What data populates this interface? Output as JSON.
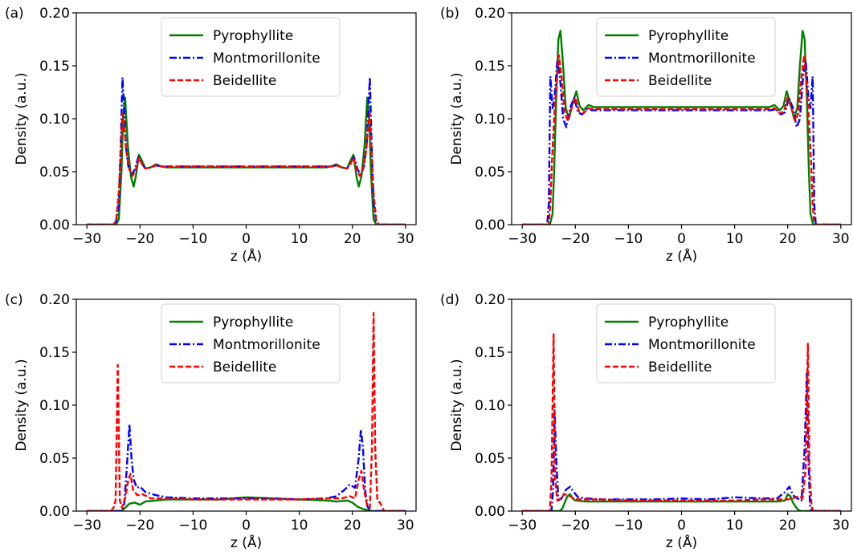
{
  "figure": {
    "ylabel": "Density (a.u.)",
    "xlabel": "z (Å)"
  },
  "chart_data": [
    {
      "type": "line",
      "panel_label": "(a)",
      "xlabel": "z (Å)",
      "ylabel": "Density (a.u.)",
      "xlim": [
        -32,
        32
      ],
      "ylim": [
        0,
        0.2
      ],
      "xticks": [
        -30,
        -20,
        -10,
        0,
        10,
        20,
        30
      ],
      "yticks": [
        0.0,
        0.05,
        0.1,
        0.15,
        0.2
      ],
      "legend_position": "top-center",
      "series": [
        {
          "name": "Pyrophyllite",
          "color": "#008000",
          "dash": "solid",
          "x": [
            -30,
            -24.5,
            -24,
            -23.5,
            -23.2,
            -22.8,
            -22.3,
            -21.7,
            -21.2,
            -20.8,
            -20.2,
            -19.6,
            -19.0,
            -18.0,
            -17.0,
            -16.0,
            -15.0,
            15.0,
            16.0,
            17.0,
            18.0,
            19.0,
            19.6,
            20.2,
            20.8,
            21.2,
            21.7,
            22.3,
            22.8,
            23.2,
            23.5,
            24.0,
            24.5,
            30
          ],
          "y": [
            0,
            0,
            0.005,
            0.05,
            0.1,
            0.12,
            0.075,
            0.045,
            0.036,
            0.045,
            0.066,
            0.06,
            0.053,
            0.054,
            0.057,
            0.055,
            0.054,
            0.054,
            0.055,
            0.057,
            0.054,
            0.053,
            0.06,
            0.066,
            0.045,
            0.036,
            0.045,
            0.075,
            0.12,
            0.1,
            0.05,
            0.005,
            0,
            0
          ]
        },
        {
          "name": "Montmorillonite",
          "color": "#0000ff",
          "dash": "dashdot",
          "x": [
            -30,
            -25,
            -24.5,
            -24,
            -23.6,
            -23.3,
            -23.0,
            -22.7,
            -22.2,
            -21.6,
            -21.0,
            -20.3,
            -19.7,
            -19.0,
            -18.0,
            -17.0,
            -16.0,
            16.0,
            17.0,
            18.0,
            19.0,
            19.7,
            20.3,
            21.0,
            21.6,
            22.2,
            22.7,
            23.0,
            23.3,
            23.6,
            24.0,
            24.5,
            25,
            30
          ],
          "y": [
            0,
            0,
            0.003,
            0.02,
            0.08,
            0.139,
            0.11,
            0.075,
            0.055,
            0.047,
            0.052,
            0.064,
            0.058,
            0.053,
            0.054,
            0.056,
            0.055,
            0.055,
            0.056,
            0.054,
            0.053,
            0.058,
            0.064,
            0.052,
            0.047,
            0.055,
            0.075,
            0.11,
            0.139,
            0.08,
            0.02,
            0.003,
            0,
            0
          ]
        },
        {
          "name": "Beidellite",
          "color": "#ff0000",
          "dash": "dashed",
          "x": [
            -30,
            -25,
            -24.5,
            -24,
            -23.6,
            -23.3,
            -23.0,
            -22.6,
            -22.0,
            -21.4,
            -20.8,
            -20.2,
            -19.6,
            -19.0,
            -18.0,
            -17.0,
            -16.0,
            16.0,
            17.0,
            18.0,
            19.0,
            19.6,
            20.2,
            20.8,
            21.4,
            22.0,
            22.6,
            23.0,
            23.3,
            23.6,
            24.0,
            24.5,
            25,
            30
          ],
          "y": [
            0,
            0,
            0.004,
            0.03,
            0.07,
            0.105,
            0.095,
            0.07,
            0.052,
            0.046,
            0.052,
            0.063,
            0.057,
            0.053,
            0.054,
            0.056,
            0.055,
            0.055,
            0.056,
            0.054,
            0.053,
            0.057,
            0.063,
            0.052,
            0.046,
            0.052,
            0.07,
            0.095,
            0.105,
            0.07,
            0.03,
            0.004,
            0,
            0
          ]
        }
      ]
    },
    {
      "type": "line",
      "panel_label": "(b)",
      "xlabel": "z (Å)",
      "ylabel": "Density (a.u.)",
      "xlim": [
        -32,
        32
      ],
      "ylim": [
        0,
        0.2
      ],
      "xticks": [
        -30,
        -20,
        -10,
        0,
        10,
        20,
        30
      ],
      "yticks": [
        0.0,
        0.05,
        0.1,
        0.15,
        0.2
      ],
      "legend_position": "top-center",
      "series": [
        {
          "name": "Pyrophyllite",
          "color": "#008000",
          "dash": "solid",
          "x": [
            -30,
            -24.8,
            -24.3,
            -24.0,
            -23.6,
            -23.2,
            -22.8,
            -22.3,
            -21.8,
            -21.2,
            -20.5,
            -19.8,
            -19.2,
            -18.5,
            -17.5,
            -16.5,
            -15.0,
            15.0,
            16.5,
            17.5,
            18.5,
            19.2,
            19.8,
            20.5,
            21.2,
            21.8,
            22.3,
            22.8,
            23.2,
            23.6,
            24.0,
            24.3,
            24.8,
            30
          ],
          "y": [
            0,
            0,
            0.01,
            0.05,
            0.12,
            0.175,
            0.183,
            0.15,
            0.11,
            0.1,
            0.115,
            0.126,
            0.112,
            0.108,
            0.113,
            0.111,
            0.111,
            0.111,
            0.111,
            0.113,
            0.108,
            0.112,
            0.126,
            0.115,
            0.1,
            0.11,
            0.15,
            0.183,
            0.175,
            0.12,
            0.05,
            0.01,
            0,
            0
          ]
        },
        {
          "name": "Montmorillonite",
          "color": "#0000ff",
          "dash": "dashdot",
          "x": [
            -30,
            -25.3,
            -25.0,
            -24.7,
            -24.3,
            -23.9,
            -23.4,
            -22.9,
            -22.3,
            -21.7,
            -21.0,
            -20.2,
            -19.5,
            -18.7,
            -17.8,
            -16.8,
            -15.0,
            15.0,
            16.8,
            17.8,
            18.7,
            19.5,
            20.2,
            21.0,
            21.7,
            22.3,
            22.9,
            23.4,
            23.9,
            24.3,
            24.7,
            25.0,
            25.3,
            30
          ],
          "y": [
            0,
            0,
            0.02,
            0.14,
            0.11,
            0.12,
            0.155,
            0.14,
            0.1,
            0.092,
            0.11,
            0.12,
            0.106,
            0.104,
            0.109,
            0.108,
            0.108,
            0.108,
            0.108,
            0.109,
            0.104,
            0.106,
            0.12,
            0.11,
            0.092,
            0.1,
            0.14,
            0.155,
            0.12,
            0.11,
            0.14,
            0.02,
            0,
            0
          ]
        },
        {
          "name": "Beidellite",
          "color": "#ff0000",
          "dash": "dashed",
          "x": [
            -30,
            -25.0,
            -24.7,
            -24.4,
            -24.0,
            -23.6,
            -23.1,
            -22.6,
            -22.0,
            -21.4,
            -20.7,
            -20.0,
            -19.3,
            -18.5,
            -17.5,
            -16.5,
            -15.0,
            15.0,
            16.5,
            17.5,
            18.5,
            19.3,
            20.0,
            20.7,
            21.4,
            22.0,
            22.6,
            23.1,
            23.6,
            24.0,
            24.4,
            24.7,
            25.0,
            30
          ],
          "y": [
            0,
            0,
            0.02,
            0.06,
            0.1,
            0.13,
            0.16,
            0.14,
            0.105,
            0.098,
            0.11,
            0.12,
            0.107,
            0.105,
            0.11,
            0.109,
            0.109,
            0.109,
            0.109,
            0.11,
            0.105,
            0.107,
            0.12,
            0.11,
            0.098,
            0.105,
            0.14,
            0.16,
            0.13,
            0.1,
            0.06,
            0.02,
            0,
            0
          ]
        }
      ]
    },
    {
      "type": "line",
      "panel_label": "(c)",
      "xlabel": "z (Å)",
      "ylabel": "Density (a.u.)",
      "xlim": [
        -32,
        32
      ],
      "ylim": [
        0,
        0.2
      ],
      "xticks": [
        -30,
        -20,
        -10,
        0,
        10,
        20,
        30
      ],
      "yticks": [
        0.0,
        0.05,
        0.1,
        0.15,
        0.2
      ],
      "legend_position": "top-center",
      "series": [
        {
          "name": "Pyrophyllite",
          "color": "#008000",
          "dash": "solid",
          "x": [
            -30,
            -23.5,
            -22.8,
            -22.0,
            -21.0,
            -20.0,
            -19.0,
            -17.0,
            -15.0,
            -10.0,
            -5.0,
            0.0,
            5.0,
            10.0,
            15.0,
            17.0,
            19.0,
            20.0,
            21.0,
            22.0,
            22.8,
            23.5,
            30
          ],
          "y": [
            0,
            0,
            0.003,
            0.007,
            0.008,
            0.006,
            0.009,
            0.01,
            0.011,
            0.011,
            0.011,
            0.013,
            0.012,
            0.011,
            0.01,
            0.009,
            0.01,
            0.008,
            0.004,
            0.002,
            0.001,
            0,
            0
          ]
        },
        {
          "name": "Montmorillonite",
          "color": "#0000ff",
          "dash": "dashdot",
          "x": [
            -30,
            -23.5,
            -23.0,
            -22.5,
            -22.0,
            -21.6,
            -21.2,
            -20.6,
            -20.0,
            -19.0,
            -17.0,
            -15.0,
            -10.0,
            -5.0,
            0.0,
            5.0,
            10.0,
            15.0,
            17.0,
            18.5,
            19.5,
            20.5,
            21.2,
            21.6,
            22.0,
            22.4,
            22.8,
            23.3,
            30
          ],
          "y": [
            0,
            0,
            0.005,
            0.04,
            0.082,
            0.05,
            0.03,
            0.022,
            0.023,
            0.018,
            0.015,
            0.013,
            0.012,
            0.012,
            0.012,
            0.012,
            0.011,
            0.012,
            0.014,
            0.02,
            0.025,
            0.022,
            0.05,
            0.077,
            0.06,
            0.02,
            0.005,
            0,
            0
          ]
        },
        {
          "name": "Beidellite",
          "color": "#ff0000",
          "dash": "dashed",
          "x": [
            -30,
            -25.5,
            -25.0,
            -24.6,
            -24.2,
            -23.8,
            -23.4,
            -22.8,
            -22.2,
            -21.8,
            -21.3,
            -20.5,
            -19.5,
            -18.0,
            -15.0,
            -10.0,
            -5.0,
            0.0,
            5.0,
            10.0,
            15.0,
            18.0,
            19.5,
            20.5,
            21.2,
            21.7,
            22.2,
            22.8,
            23.3,
            23.7,
            24.0,
            24.3,
            24.7,
            25.2,
            25.6,
            26,
            30
          ],
          "y": [
            0,
            0,
            0.003,
            0.01,
            0.138,
            0.01,
            0.003,
            0.012,
            0.03,
            0.035,
            0.02,
            0.015,
            0.016,
            0.012,
            0.012,
            0.011,
            0.011,
            0.011,
            0.011,
            0.011,
            0.012,
            0.012,
            0.014,
            0.012,
            0.03,
            0.038,
            0.02,
            0.005,
            0.003,
            0.06,
            0.187,
            0.06,
            0.01,
            0.008,
            0.004,
            0,
            0
          ]
        }
      ]
    },
    {
      "type": "line",
      "panel_label": "(d)",
      "xlabel": "z (Å)",
      "ylabel": "Density (a.u.)",
      "xlim": [
        -32,
        32
      ],
      "ylim": [
        0,
        0.2
      ],
      "xticks": [
        -30,
        -20,
        -10,
        0,
        10,
        20,
        30
      ],
      "yticks": [
        0.0,
        0.05,
        0.1,
        0.15,
        0.2
      ],
      "legend_position": "top-center",
      "series": [
        {
          "name": "Pyrophyllite",
          "color": "#008000",
          "dash": "solid",
          "x": [
            -30,
            -23.0,
            -22.5,
            -22.0,
            -21.5,
            -21.0,
            -20.5,
            -20.0,
            -18.0,
            -15.0,
            -10.0,
            -5.0,
            0.0,
            5.0,
            10.0,
            15.0,
            18.0,
            19.5,
            20.0,
            20.5,
            21.0,
            21.5,
            22.0,
            22.5,
            30
          ],
          "y": [
            0,
            0,
            0.002,
            0.008,
            0.014,
            0.016,
            0.012,
            0.01,
            0.009,
            0.009,
            0.009,
            0.009,
            0.009,
            0.009,
            0.009,
            0.009,
            0.009,
            0.01,
            0.016,
            0.014,
            0.008,
            0.004,
            0.001,
            0,
            0
          ]
        },
        {
          "name": "Montmorillonite",
          "color": "#0000ff",
          "dash": "dashdot",
          "x": [
            -30,
            -24.5,
            -24.2,
            -23.9,
            -23.6,
            -23.2,
            -22.6,
            -21.8,
            -21.0,
            -20.3,
            -19.5,
            -18.0,
            -15.0,
            -10.0,
            -5.0,
            0.0,
            5.0,
            10.0,
            15.0,
            18.0,
            19.5,
            20.3,
            21.0,
            21.8,
            22.6,
            23.2,
            23.6,
            23.9,
            24.2,
            24.5,
            30
          ],
          "y": [
            0,
            0,
            0.02,
            0.095,
            0.05,
            0.01,
            0.012,
            0.02,
            0.023,
            0.018,
            0.013,
            0.012,
            0.011,
            0.011,
            0.011,
            0.012,
            0.011,
            0.013,
            0.012,
            0.012,
            0.018,
            0.023,
            0.015,
            0.012,
            0.01,
            0.06,
            0.13,
            0.05,
            0.005,
            0,
            0
          ]
        },
        {
          "name": "Beidellite",
          "color": "#ff0000",
          "dash": "dashed",
          "x": [
            -30,
            -24.8,
            -24.5,
            -24.1,
            -23.8,
            -23.4,
            -22.8,
            -22.0,
            -21.0,
            -20.0,
            -18.0,
            -15.0,
            -10.0,
            -5.0,
            0.0,
            5.0,
            10.0,
            15.0,
            18.0,
            20.0,
            21.0,
            22.0,
            22.8,
            23.4,
            23.8,
            24.1,
            24.5,
            24.8,
            30
          ],
          "y": [
            0,
            0,
            0.03,
            0.167,
            0.03,
            0.01,
            0.012,
            0.016,
            0.014,
            0.011,
            0.011,
            0.011,
            0.01,
            0.01,
            0.01,
            0.01,
            0.01,
            0.011,
            0.011,
            0.011,
            0.012,
            0.014,
            0.012,
            0.04,
            0.158,
            0.04,
            0.005,
            0,
            0
          ]
        }
      ]
    }
  ]
}
